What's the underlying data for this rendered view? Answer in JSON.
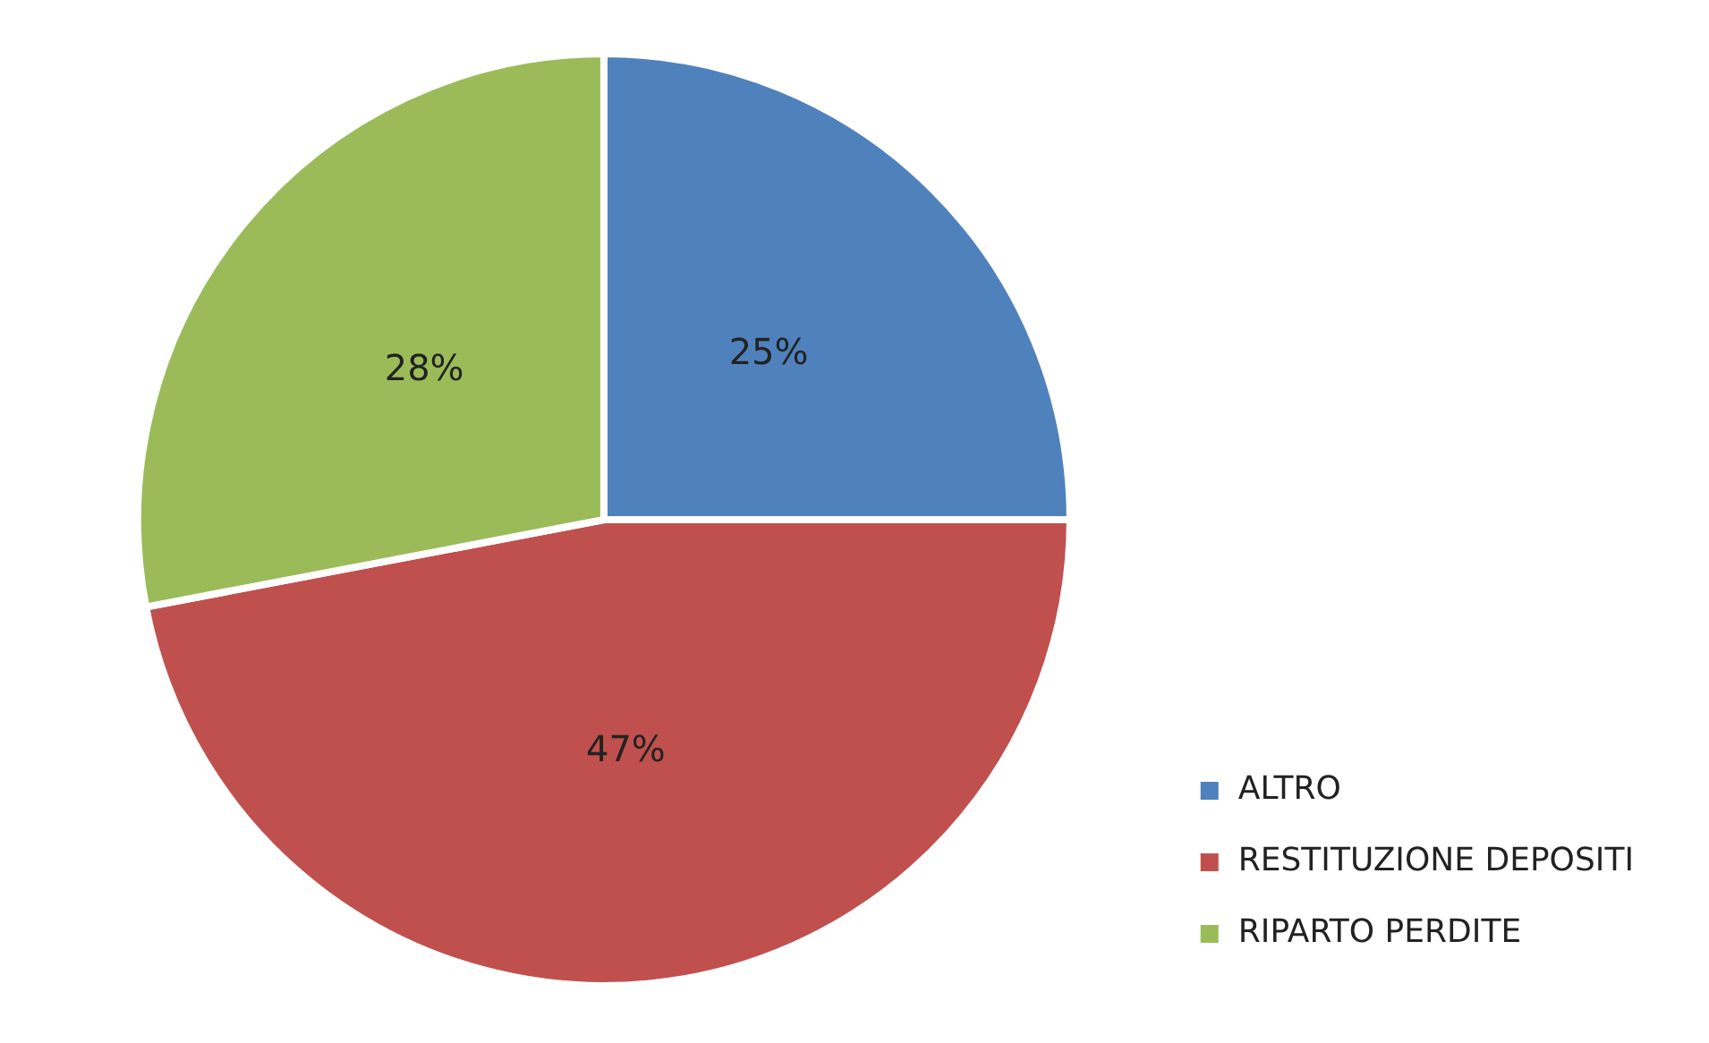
{
  "chart_data": {
    "type": "pie",
    "categories": [
      "ALTRO",
      "RESTITUZIONE DEPOSITI",
      "RIPARTO PERDITE"
    ],
    "values": [
      25,
      47,
      28
    ],
    "colors": [
      "#4f81bd",
      "#c0504d",
      "#9bbb59"
    ],
    "value_labels": [
      "25%",
      "47%",
      "28%"
    ],
    "legend": "right"
  }
}
